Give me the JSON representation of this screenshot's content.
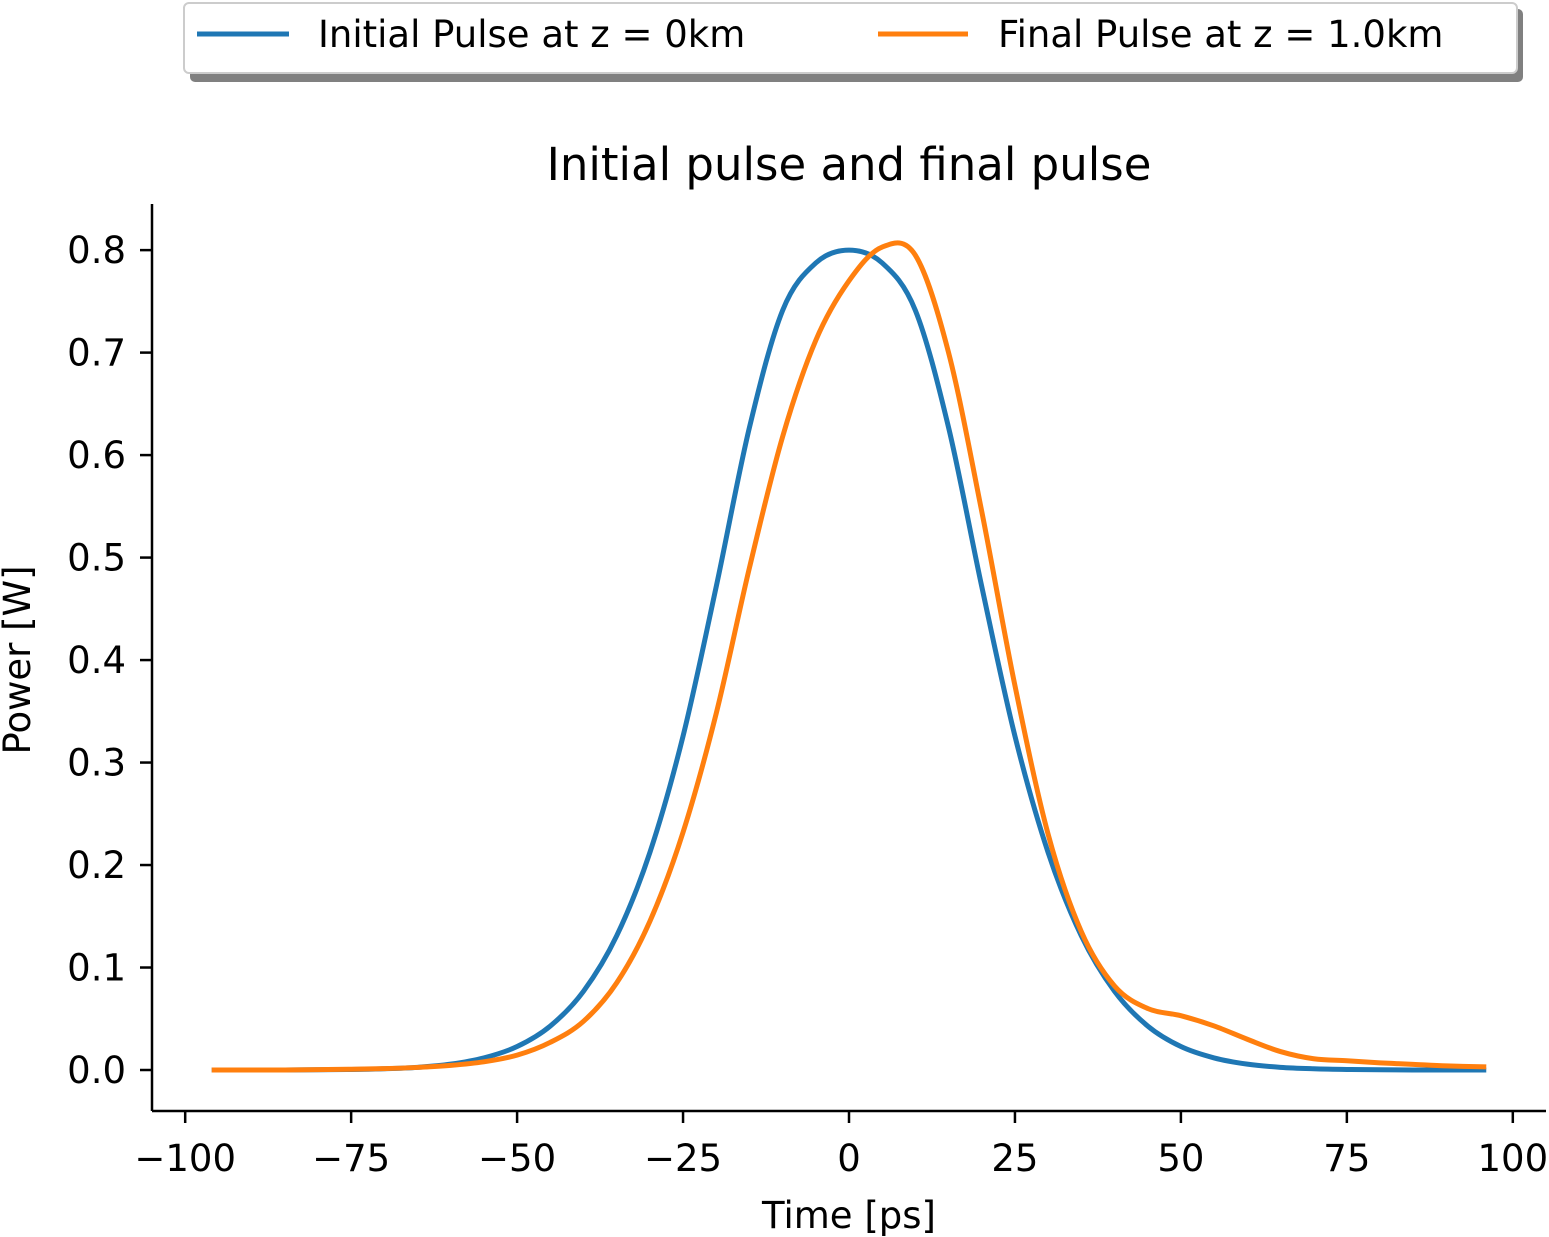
{
  "chart_data": {
    "type": "line",
    "title": "Initial pulse and final pulse",
    "xlabel": "Time [ps]",
    "ylabel": "Power [W]",
    "xlim": [
      -105,
      105
    ],
    "ylim": [
      -0.04,
      0.845
    ],
    "xticks": [
      -100,
      -75,
      -50,
      -25,
      0,
      25,
      50,
      75,
      100
    ],
    "xtick_labels": [
      "−100",
      "−75",
      "−50",
      "−25",
      "0",
      "25",
      "50",
      "75",
      "100"
    ],
    "yticks": [
      0.0,
      0.1,
      0.2,
      0.3,
      0.4,
      0.5,
      0.6,
      0.7,
      0.8
    ],
    "ytick_labels": [
      "0.0",
      "0.1",
      "0.2",
      "0.3",
      "0.4",
      "0.5",
      "0.6",
      "0.7",
      "0.8"
    ],
    "grid": false,
    "legend_position": "top-center (above plot)",
    "x": [
      -96,
      -90,
      -85,
      -80,
      -75,
      -70,
      -65,
      -60,
      -55,
      -50,
      -45,
      -40,
      -35,
      -30,
      -25,
      -20,
      -15,
      -10,
      -5,
      0,
      5,
      10,
      15,
      20,
      25,
      30,
      35,
      40,
      45,
      50,
      55,
      60,
      65,
      70,
      75,
      80,
      85,
      90,
      96
    ],
    "series": [
      {
        "name": "Initial Pulse at z = 0km",
        "color": "#1f77b4",
        "values": [
          0.0,
          0.0,
          0.0,
          0.0002,
          0.0005,
          0.0012,
          0.0026,
          0.0057,
          0.0118,
          0.0229,
          0.0429,
          0.0768,
          0.1309,
          0.2122,
          0.3258,
          0.4717,
          0.6269,
          0.7412,
          0.7875,
          0.8,
          0.7875,
          0.7412,
          0.6269,
          0.4717,
          0.3258,
          0.2122,
          0.1309,
          0.0768,
          0.0429,
          0.0229,
          0.0118,
          0.0057,
          0.0026,
          0.0012,
          0.0005,
          0.0002,
          0.0,
          0.0,
          0.0
        ]
      },
      {
        "name": "Final Pulse at z = 1.0km",
        "color": "#ff7f0e",
        "values": [
          0.0,
          0.0,
          0.0,
          0.0004,
          0.0008,
          0.0014,
          0.0025,
          0.0045,
          0.008,
          0.0145,
          0.027,
          0.0475,
          0.085,
          0.145,
          0.232,
          0.348,
          0.49,
          0.618,
          0.712,
          0.77,
          0.803,
          0.795,
          0.7,
          0.545,
          0.375,
          0.23,
          0.135,
          0.082,
          0.06,
          0.053,
          0.043,
          0.03,
          0.018,
          0.011,
          0.009,
          0.007,
          0.0055,
          0.004,
          0.003
        ]
      }
    ]
  }
}
